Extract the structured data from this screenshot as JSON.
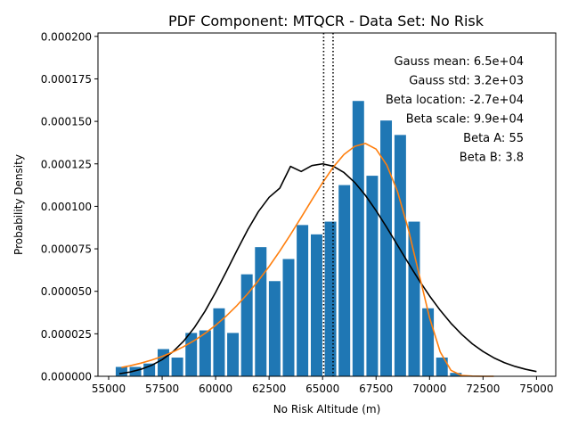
{
  "chart_data": {
    "type": "bar",
    "title": "PDF Component: MTQCR - Data Set: No Risk",
    "xlabel": "No Risk Altitude (m)",
    "ylabel": "Probability Density",
    "xlim": [
      54500,
      75900
    ],
    "ylim": [
      0,
      0.000202
    ],
    "xticks": [
      55000,
      57500,
      60000,
      62500,
      65000,
      67500,
      70000,
      72500,
      75000
    ],
    "xtick_labels": [
      "55000",
      "57500",
      "60000",
      "62500",
      "65000",
      "67500",
      "70000",
      "72500",
      "75000"
    ],
    "yticks": [
      0,
      2.5e-05,
      5e-05,
      7.5e-05,
      0.0001,
      0.000125,
      0.00015,
      0.000175,
      0.0002
    ],
    "ytick_labels": [
      "0.000000",
      "0.000025",
      "0.000050",
      "0.000075",
      "0.000100",
      "0.000125",
      "0.000150",
      "0.000175",
      "0.000200"
    ],
    "bar_width": 540,
    "bars": {
      "color": "#1f77b4",
      "x": [
        55600,
        56250,
        56900,
        57560,
        58210,
        58860,
        59510,
        60160,
        60810,
        61460,
        62110,
        62760,
        63410,
        64060,
        64720,
        65370,
        66020,
        66670,
        67320,
        67970,
        68630,
        69280,
        69930,
        70580,
        71230
      ],
      "values": [
        5.5e-06,
        5.5e-06,
        7.5e-06,
        1.6e-05,
        1.1e-05,
        2.55e-05,
        2.7e-05,
        4e-05,
        2.55e-05,
        6e-05,
        7.6e-05,
        5.6e-05,
        6.9e-05,
        8.9e-05,
        8.35e-05,
        9.1e-05,
        0.0001125,
        0.000162,
        0.000118,
        0.0001505,
        0.000142,
        9.1e-05,
        4e-05,
        1.1e-05,
        2e-06
      ]
    },
    "series": [
      {
        "kind": "gauss",
        "color": "#000000",
        "x": [
          55500,
          56000,
          56500,
          57000,
          57500,
          58000,
          58500,
          59000,
          59500,
          60000,
          60500,
          61000,
          61500,
          62000,
          62500,
          63000,
          63500,
          64000,
          64500,
          65000,
          65500,
          66000,
          66500,
          67000,
          67500,
          68000,
          68500,
          69000,
          69500,
          70000,
          70500,
          71000,
          71500,
          72000,
          72500,
          73000,
          73500,
          74000,
          74500,
          75000
        ],
        "values": [
          1.5e-06,
          2.5e-06,
          4.1e-06,
          6.4e-06,
          9.8e-06,
          1.44e-05,
          2.06e-05,
          2.85e-05,
          3.82e-05,
          4.94e-05,
          6.16e-05,
          7.41e-05,
          8.62e-05,
          9.69e-05,
          0.0001053,
          0.0001107,
          0.0001235,
          0.0001205,
          0.000124,
          0.000125,
          0.0001236,
          0.0001199,
          0.0001141,
          0.0001065,
          9.75e-05,
          8.76e-05,
          7.72e-05,
          6.68e-05,
          5.67e-05,
          4.73e-05,
          3.88e-05,
          3.12e-05,
          2.47e-05,
          1.91e-05,
          1.46e-05,
          1.09e-05,
          8e-06,
          5.8e-06,
          4.1e-06,
          2.8e-06
        ]
      },
      {
        "kind": "beta",
        "color": "#ff7f0e",
        "x": [
          55600,
          56000,
          56500,
          57000,
          57500,
          58000,
          58500,
          59000,
          59500,
          60000,
          60500,
          61000,
          61500,
          62000,
          62500,
          63000,
          63500,
          64000,
          64500,
          65000,
          65500,
          66000,
          66500,
          67000,
          67500,
          68000,
          68500,
          69000,
          69500,
          70000,
          70500,
          71000,
          71500,
          72000,
          72500,
          73000
        ],
        "values": [
          5.2e-06,
          6.2e-06,
          7.7e-06,
          9.5e-06,
          1.17e-05,
          1.43e-05,
          1.74e-05,
          2.1e-05,
          2.52e-05,
          3e-05,
          3.55e-05,
          4.17e-05,
          4.86e-05,
          5.63e-05,
          6.46e-05,
          7.37e-05,
          8.34e-05,
          9.35e-05,
          0.0001038,
          0.0001139,
          0.0001231,
          0.0001305,
          0.0001353,
          0.000137,
          0.0001337,
          0.0001243,
          0.0001088,
          8.69e-05,
          6.06e-05,
          3.45e-05,
          1.43e-05,
          3.5e-06,
          5e-07,
          1e-07,
          0.0,
          0.0
        ]
      }
    ],
    "vlines": {
      "style": "dotted",
      "color": "#000000",
      "x": [
        65050,
        65490
      ]
    },
    "annotations": [
      "Gauss mean: 6.5e+04",
      "Gauss std: 3.2e+03",
      "Beta location: -2.7e+04",
      "Beta scale: 9.9e+04",
      "Beta A: 55",
      "Beta B: 3.8"
    ],
    "annotation_placement": "top-right",
    "grid": false,
    "legend": false
  }
}
